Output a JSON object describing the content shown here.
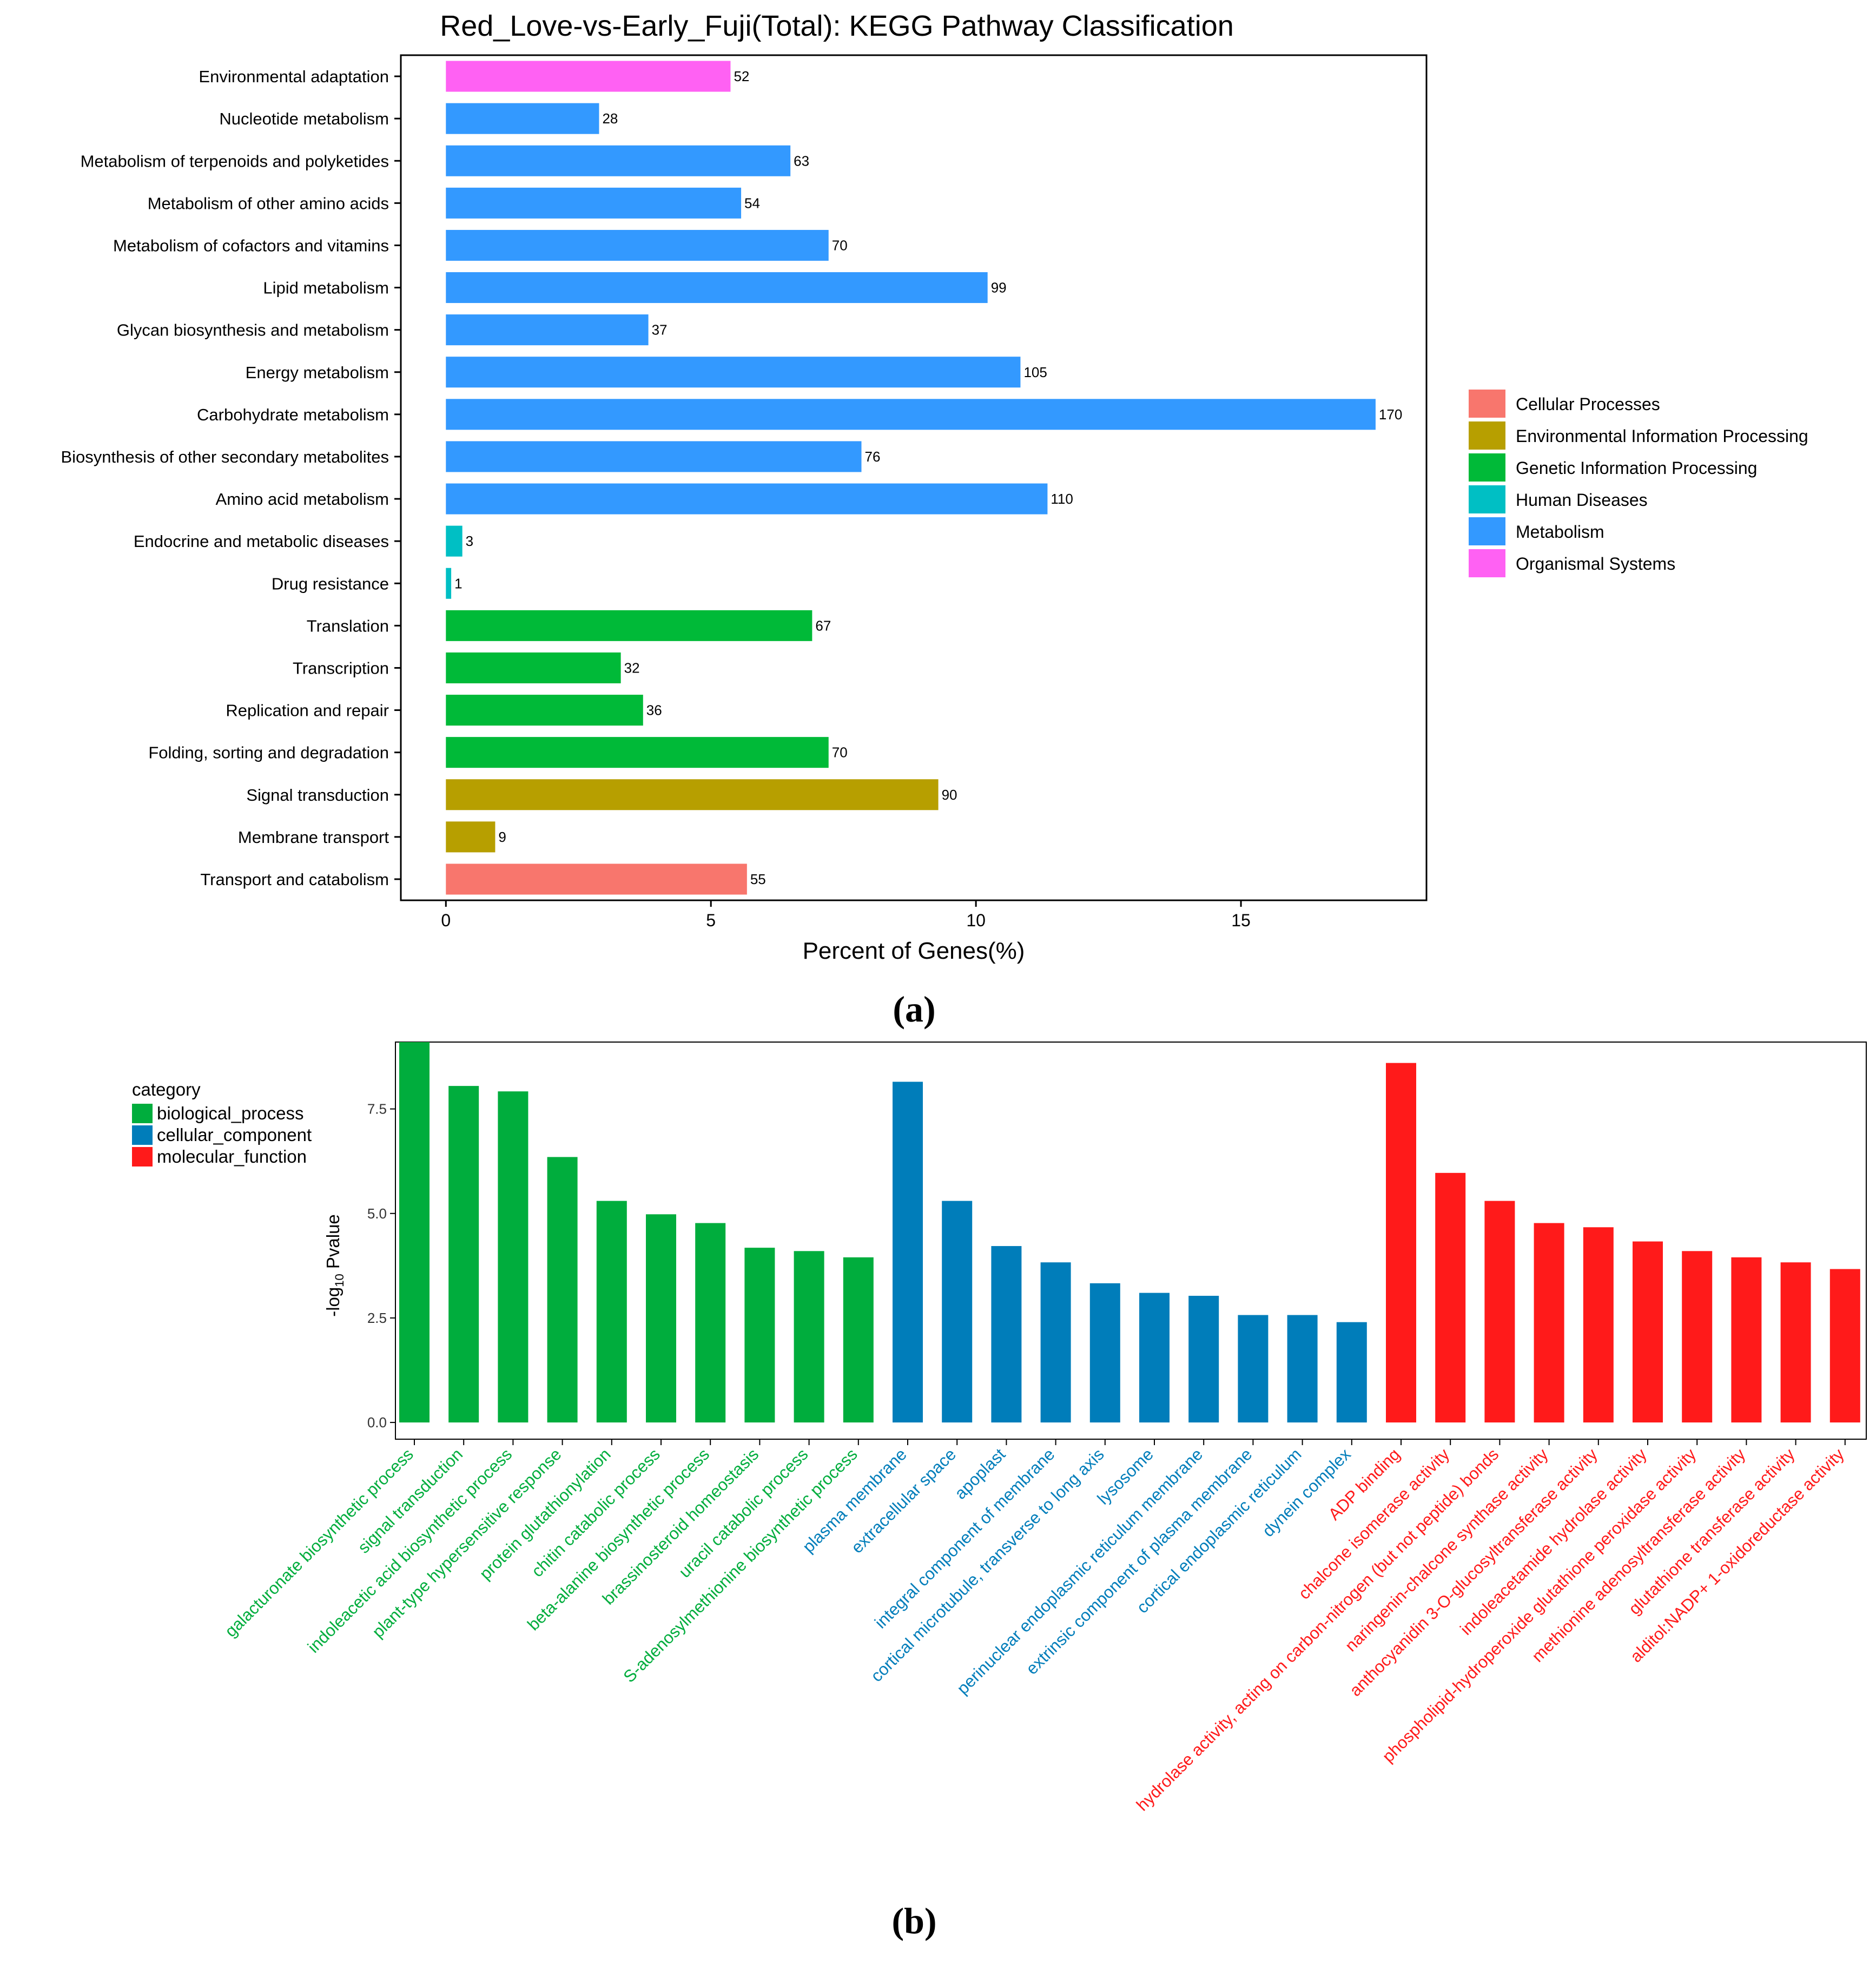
{
  "chart_data": [
    {
      "type": "bar",
      "orientation": "horizontal",
      "panel_label": "(a)",
      "title": "Red_Love-vs-Early_Fuji(Total): KEGG Pathway Classification",
      "xlabel": "Percent of Genes(%)",
      "ylabel": "",
      "xlim": [
        -0.85,
        18.5
      ],
      "xticks": [
        0,
        5,
        10,
        15
      ],
      "grid": false,
      "legend_position": "right",
      "legend": [
        {
          "name": "Cellular Processes",
          "color": "#F8766D"
        },
        {
          "name": "Environmental Information Processing",
          "color": "#B79F00"
        },
        {
          "name": "Genetic Information Processing",
          "color": "#00BA38"
        },
        {
          "name": "Human Diseases",
          "color": "#00BFC4"
        },
        {
          "name": "Metabolism",
          "color": "#3399FF"
        },
        {
          "name": "Organismal Systems",
          "color": "#FF61F3"
        }
      ],
      "bars": [
        {
          "label": "Environmental adaptation",
          "percent": 5.37,
          "count": "52",
          "category": 5
        },
        {
          "label": "Nucleotide metabolism",
          "percent": 2.89,
          "count": "28",
          "category": 4
        },
        {
          "label": "Metabolism of terpenoids and polyketides",
          "percent": 6.5,
          "count": "63",
          "category": 4
        },
        {
          "label": "Metabolism of other amino acids",
          "percent": 5.57,
          "count": "54",
          "category": 4
        },
        {
          "label": "Metabolism of cofactors and vitamins",
          "percent": 7.22,
          "count": "70",
          "category": 4
        },
        {
          "label": "Lipid metabolism",
          "percent": 10.22,
          "count": "99",
          "category": 4
        },
        {
          "label": "Glycan biosynthesis and metabolism",
          "percent": 3.82,
          "count": "37",
          "category": 4
        },
        {
          "label": "Energy metabolism",
          "percent": 10.84,
          "count": "105",
          "category": 4
        },
        {
          "label": "Carbohydrate metabolism",
          "percent": 17.54,
          "count": "170",
          "category": 4
        },
        {
          "label": "Biosynthesis of other secondary metabolites",
          "percent": 7.84,
          "count": "76",
          "category": 4
        },
        {
          "label": "Amino acid metabolism",
          "percent": 11.35,
          "count": "110",
          "category": 4
        },
        {
          "label": "Endocrine and metabolic diseases",
          "percent": 0.31,
          "count": "3",
          "category": 3
        },
        {
          "label": "Drug resistance",
          "percent": 0.1,
          "count": "1",
          "category": 3
        },
        {
          "label": "Translation",
          "percent": 6.91,
          "count": "67",
          "category": 2
        },
        {
          "label": "Transcription",
          "percent": 3.3,
          "count": "32",
          "category": 2
        },
        {
          "label": "Replication and repair",
          "percent": 3.72,
          "count": "36",
          "category": 2
        },
        {
          "label": "Folding, sorting and degradation",
          "percent": 7.22,
          "count": "70",
          "category": 2
        },
        {
          "label": "Signal transduction",
          "percent": 9.29,
          "count": "90",
          "category": 1
        },
        {
          "label": "Membrane transport",
          "percent": 0.93,
          "count": "9",
          "category": 1
        },
        {
          "label": "Transport and catabolism",
          "percent": 5.68,
          "count": "55",
          "category": 0
        }
      ]
    },
    {
      "type": "bar",
      "orientation": "vertical",
      "panel_label": "(b)",
      "title": "",
      "xlabel": "",
      "ylabel_main": "-log",
      "ylabel_sub": "10",
      "ylabel_tail": " Pvalue",
      "ylim": [
        -0.4,
        9.1
      ],
      "yticks": [
        {
          "value": 0,
          "label": "0.0"
        },
        {
          "value": 2.5,
          "label": "2.5"
        },
        {
          "value": 5,
          "label": "5.0"
        },
        {
          "value": 7.5,
          "label": "7.5"
        }
      ],
      "grid": false,
      "legend_title": "category",
      "legend_position": "top-left",
      "legend": [
        {
          "name": "biological_process",
          "color": "#00AD3D"
        },
        {
          "name": "cellular_component",
          "color": "#007DBA"
        },
        {
          "name": "molecular_function",
          "color": "#FF1A1A"
        }
      ],
      "bars": [
        {
          "label": "galacturonate biosynthetic process",
          "value": 9.1,
          "category": 0
        },
        {
          "label": "signal transduction",
          "value": 8.05,
          "category": 0
        },
        {
          "label": "indoleacetic acid biosynthetic process",
          "value": 7.92,
          "category": 0
        },
        {
          "label": "plant-type hypersensitive response",
          "value": 6.35,
          "category": 0
        },
        {
          "label": "protein glutathionylation",
          "value": 5.3,
          "category": 0
        },
        {
          "label": "chitin catabolic process",
          "value": 4.98,
          "category": 0
        },
        {
          "label": "beta-alanine biosynthetic process",
          "value": 4.77,
          "category": 0
        },
        {
          "label": "brassinosteroid homeostasis",
          "value": 4.18,
          "category": 0
        },
        {
          "label": "uracil catabolic process",
          "value": 4.1,
          "category": 0
        },
        {
          "label": "S-adenosylmethionine biosynthetic process",
          "value": 3.95,
          "category": 0
        },
        {
          "label": "plasma membrane",
          "value": 8.15,
          "category": 1
        },
        {
          "label": "extracellular space",
          "value": 5.3,
          "category": 1
        },
        {
          "label": "apoplast",
          "value": 4.22,
          "category": 1
        },
        {
          "label": "integral component of membrane",
          "value": 3.83,
          "category": 1
        },
        {
          "label": "cortical microtubule, transverse to long axis",
          "value": 3.33,
          "category": 1
        },
        {
          "label": "lysosome",
          "value": 3.1,
          "category": 1
        },
        {
          "label": "perinuclear endoplasmic reticulum membrane",
          "value": 3.03,
          "category": 1
        },
        {
          "label": "extrinsic component of plasma membrane",
          "value": 2.57,
          "category": 1
        },
        {
          "label": "cortical endoplasmic reticulum",
          "value": 2.57,
          "category": 1
        },
        {
          "label": "dynein complex",
          "value": 2.4,
          "category": 1
        },
        {
          "label": "ADP binding",
          "value": 8.6,
          "category": 2
        },
        {
          "label": "chalcone isomerase activity",
          "value": 5.97,
          "category": 2
        },
        {
          "label": "hydrolase activity, acting on carbon-nitrogen (but not peptide) bonds",
          "value": 5.3,
          "category": 2
        },
        {
          "label": "naringenin-chalcone synthase activity",
          "value": 4.77,
          "category": 2
        },
        {
          "label": "anthocyanidin 3-O-glucosyltransferase activity",
          "value": 4.67,
          "category": 2
        },
        {
          "label": "indoleacetamide hydrolase activity",
          "value": 4.33,
          "category": 2
        },
        {
          "label": "phospholipid-hydroperoxide glutathione peroxidase activity",
          "value": 4.1,
          "category": 2
        },
        {
          "label": "methionine adenosyltransferase activity",
          "value": 3.95,
          "category": 2
        },
        {
          "label": "glutathione transferase activity",
          "value": 3.83,
          "category": 2
        },
        {
          "label": "alditol:NADP+ 1-oxidoreductase activity",
          "value": 3.67,
          "category": 2
        }
      ]
    }
  ]
}
